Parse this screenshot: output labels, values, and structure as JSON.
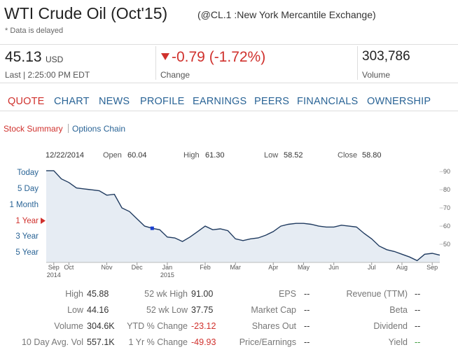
{
  "header": {
    "title": "WTI Crude Oil (Oct'15)",
    "subtitle": "(@CL.1 :New York Mercantile Exchange)",
    "note": "* Data is delayed"
  },
  "quote": {
    "last": "45.13",
    "currency": "USD",
    "last_label": "Last | 2:25:00 PM EDT",
    "change": "-0.79 (-1.72%)",
    "change_label": "Change",
    "volume": "303,786",
    "volume_label": "Volume"
  },
  "tabs": [
    "QUOTE",
    "CHART",
    "NEWS",
    "PROFILE",
    "EARNINGS",
    "PEERS",
    "FINANCIALS",
    "OWNERSHIP"
  ],
  "subtabs": [
    "Stock Summary",
    "Options Chain"
  ],
  "chart_info": {
    "date": "12/22/2014",
    "open_label": "Open",
    "open": "60.04",
    "high_label": "High",
    "high": "61.30",
    "low_label": "Low",
    "low": "58.52",
    "close_label": "Close",
    "close": "58.80"
  },
  "ranges": [
    "Today",
    "5 Day",
    "1 Month",
    "1 Year",
    "3 Year",
    "5 Year"
  ],
  "chart_data": {
    "type": "area",
    "color": "#1f3a5f",
    "fill": "#e6ecf3",
    "categories": [
      null,
      "Sep",
      null,
      "Oct",
      null,
      null,
      null,
      null,
      "Nov",
      null,
      null,
      null,
      "Dec",
      null,
      null,
      null,
      "Jan",
      null,
      null,
      null,
      null,
      "Feb",
      null,
      null,
      null,
      "Mar",
      null,
      null,
      null,
      null,
      "Apr",
      null,
      null,
      null,
      "May",
      null,
      null,
      null,
      "Jun",
      null,
      null,
      null,
      null,
      "Jul",
      null,
      null,
      null,
      "Aug",
      null,
      null,
      null,
      "Sep",
      null
    ],
    "category_years": [
      null,
      "2014",
      null,
      null,
      null,
      null,
      null,
      null,
      null,
      null,
      null,
      null,
      null,
      null,
      null,
      null,
      "2015",
      null,
      null,
      null,
      null,
      null,
      null,
      null,
      null,
      null,
      null,
      null,
      null,
      null,
      null,
      null,
      null,
      null,
      null,
      null,
      null,
      null,
      null,
      null,
      null,
      null,
      null,
      null,
      null,
      null,
      null,
      null,
      null,
      null,
      null,
      null,
      null
    ],
    "values": [
      90.5,
      90.5,
      86,
      84,
      81,
      80.5,
      80,
      79.5,
      77,
      77.5,
      70,
      68,
      64,
      60,
      58.8,
      58,
      54,
      53.5,
      51.5,
      54,
      57,
      60,
      58,
      58.5,
      57.5,
      53,
      52,
      53,
      53.5,
      55,
      57,
      60,
      61,
      61.5,
      61.5,
      61,
      60,
      59.5,
      59.5,
      60.5,
      60,
      59.5,
      56,
      53,
      49,
      47,
      46,
      44.5,
      43,
      41,
      44.5,
      45,
      44
    ],
    "ylim": [
      40,
      92
    ],
    "yticks": [
      90,
      80,
      70,
      60,
      50
    ]
  },
  "stats": {
    "rows": [
      [
        [
          "High",
          "45.88"
        ],
        [
          "52 wk High",
          "91.00"
        ],
        [
          "EPS",
          "--"
        ],
        [
          "Revenue (TTM)",
          "--"
        ]
      ],
      [
        [
          "Low",
          "44.16"
        ],
        [
          "52 wk Low",
          "37.75"
        ],
        [
          "Market Cap",
          "--"
        ],
        [
          "Beta",
          "--"
        ]
      ],
      [
        [
          "Volume",
          "304.6K"
        ],
        [
          "YTD % Change",
          "-23.12"
        ],
        [
          "Shares Out",
          "--"
        ],
        [
          "Dividend",
          "--"
        ]
      ],
      [
        [
          "10 Day Avg. Vol",
          "557.1K"
        ],
        [
          "1 Yr % Change",
          "-49.93"
        ],
        [
          "Price/Earnings",
          "--"
        ],
        [
          "Yield",
          "--"
        ]
      ]
    ]
  }
}
